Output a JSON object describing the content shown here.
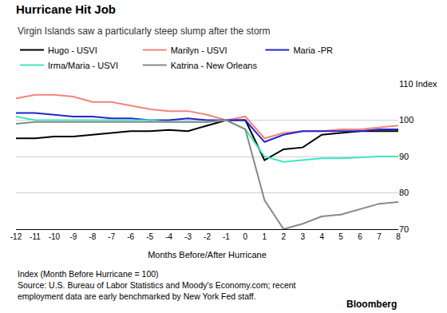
{
  "chart_data": {
    "type": "line",
    "title": "Hurricane Hit Job",
    "subtitle": "Virgin Islands saw a particularly steep slump after the storm",
    "x_label": "Months Before/After Hurricane",
    "annotations": [
      "Index (Month Before Hurricane = 100)",
      "Source: U.S. Bureau of Labor Statistics and Moody's Economy.com; recent",
      "employment data are early benchmarked by New York Fed staff.",
      "Bloomberg"
    ],
    "x": [
      -12,
      -11,
      -10,
      -9,
      -8,
      -7,
      -6,
      -5,
      -4,
      -3,
      -2,
      -1,
      0,
      1,
      2,
      3,
      4,
      5,
      6,
      7,
      8
    ],
    "series": [
      {
        "name": "Hugo - USVI",
        "color": "#000000",
        "values": [
          95,
          95,
          95.5,
          95.5,
          96,
          96.5,
          97,
          97,
          97.3,
          97,
          98.5,
          100,
          100,
          89,
          92,
          92.5,
          96,
          96.5,
          97,
          97,
          97
        ]
      },
      {
        "name": "Marilyn - USVI",
        "color": "#f4847a",
        "values": [
          106,
          107,
          107,
          106.5,
          105,
          105,
          104,
          103,
          102.5,
          102.5,
          101.5,
          100,
          101,
          95,
          96.5,
          97,
          97,
          97.5,
          97.5,
          98,
          98.5
        ]
      },
      {
        "name": "Maria -PR",
        "color": "#2424cc",
        "values": [
          102,
          102,
          101.5,
          101,
          101,
          100.5,
          100.5,
          100,
          100,
          100.5,
          100,
          100,
          100,
          94,
          96,
          97,
          97,
          97,
          97,
          97.5,
          97.5
        ]
      },
      {
        "name": "Irma/Maria - USVI",
        "color": "#3ee6c4",
        "values": [
          101,
          100,
          100,
          100,
          100,
          100,
          100,
          100,
          99.5,
          99.5,
          99.5,
          100,
          97.5,
          90,
          88.5,
          89,
          89.5,
          89.5,
          89.8,
          90,
          90
        ]
      },
      {
        "name": "Katrina - New Orleans",
        "color": "#888888",
        "values": [
          99,
          99.5,
          99.5,
          99.5,
          99.5,
          99.5,
          99.5,
          99.5,
          99.5,
          99.5,
          99.5,
          100,
          97.5,
          78,
          70,
          71.5,
          73.5,
          74,
          75.5,
          77,
          77.5
        ]
      }
    ],
    "xlim": [
      -12,
      8
    ],
    "xticks": [
      -12,
      -11,
      -10,
      -9,
      -8,
      -7,
      -6,
      -5,
      -4,
      -3,
      -2,
      -1,
      0,
      1,
      2,
      3,
      4,
      5,
      6,
      7,
      8
    ],
    "ylim": [
      70,
      110
    ],
    "yticks": [
      70,
      80,
      90,
      100,
      {
        "value": 110,
        "label": "110 Index"
      }
    ],
    "grid": true,
    "legend": "top"
  }
}
